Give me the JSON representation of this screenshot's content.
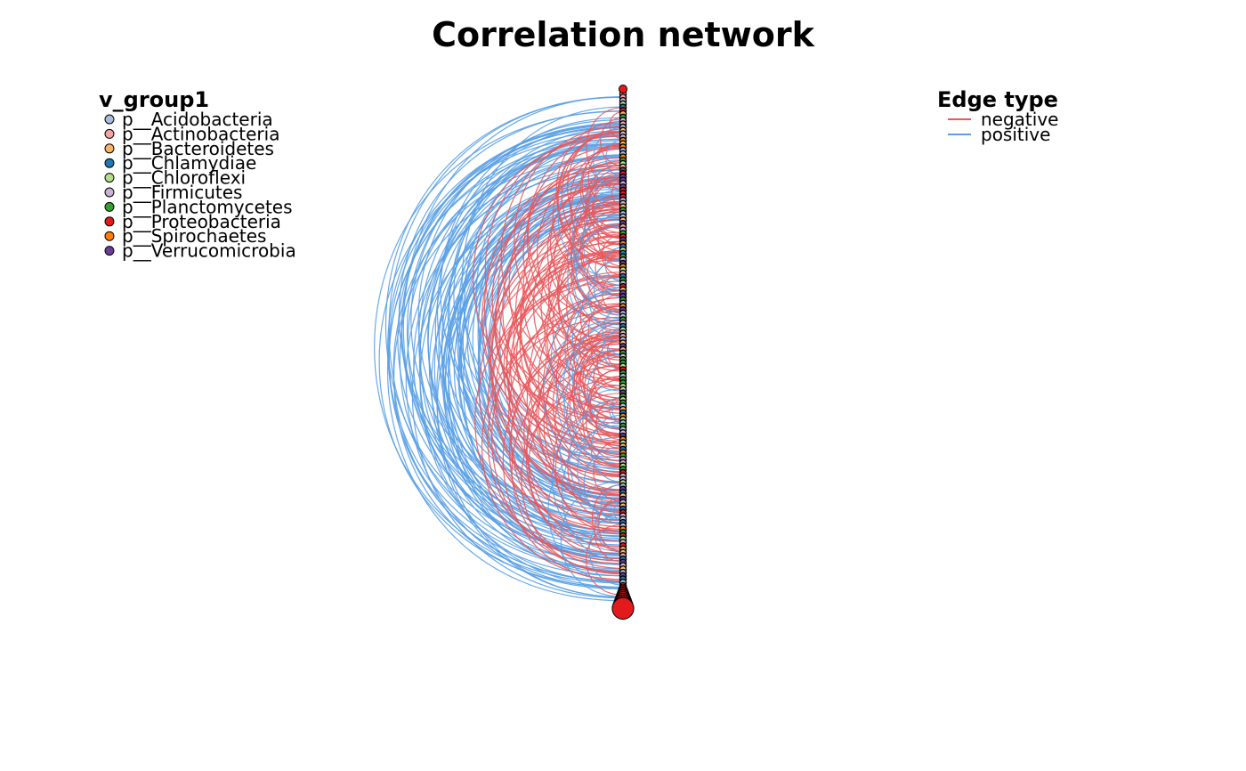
{
  "chart_data": {
    "type": "network",
    "title": "Correlation network",
    "layout": "linear-arc",
    "node_legend": {
      "title": "v_group1",
      "entries": [
        {
          "label": "p__Acidobacteria",
          "color": "#A6BDDB"
        },
        {
          "label": "p__Actinobacteria",
          "color": "#F4A3A0"
        },
        {
          "label": "p__Bacteroidetes",
          "color": "#FDB462"
        },
        {
          "label": "p__Chlamydiae",
          "color": "#1F78B4"
        },
        {
          "label": "p__Chloroflexi",
          "color": "#B2DF8A"
        },
        {
          "label": "p__Firmicutes",
          "color": "#CAB2D6"
        },
        {
          "label": "p__Planctomycetes",
          "color": "#33A02C"
        },
        {
          "label": "p__Proteobacteria",
          "color": "#E31A1C"
        },
        {
          "label": "p__Spirochaetes",
          "color": "#FF7F00"
        },
        {
          "label": "p__Verrucomicrobia",
          "color": "#6A3D9A"
        }
      ]
    },
    "edge_legend": {
      "title": "Edge type",
      "entries": [
        {
          "label": "negative",
          "color": "#E8585C"
        },
        {
          "label": "positive",
          "color": "#5AA0E6"
        }
      ]
    }
  }
}
